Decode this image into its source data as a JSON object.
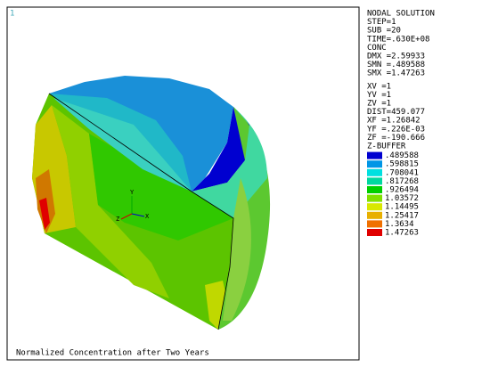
{
  "window_number": "1",
  "info": [
    "NODAL SOLUTION",
    "STEP=1",
    "SUB =20",
    "TIME=.630E+08",
    "CONC",
    "DMX =2.59933",
    "SMN =.489588",
    "SMX =1.47263"
  ],
  "view": [
    "XV =1",
    "YV =1",
    "ZV =1",
    "DIST=459.077",
    "XF =1.26842",
    "YF =.226E-03",
    "ZF =-190.666",
    "Z-BUFFER"
  ],
  "legend": {
    "labels": [
      ".489588",
      ".598815",
      ".708041",
      ".817268",
      ".926494",
      "1.03572",
      "1.14495",
      "1.25417",
      "1.3634",
      "1.47263"
    ],
    "colors": [
      "#0000d0",
      "#0096e6",
      "#00e0e0",
      "#00d8a0",
      "#00d000",
      "#80e000",
      "#d8e800",
      "#e8b000",
      "#f07000",
      "#e00000"
    ]
  },
  "triad": [
    "Y",
    "Z",
    "X"
  ],
  "caption": "Normalized Concentration after Two Years"
}
